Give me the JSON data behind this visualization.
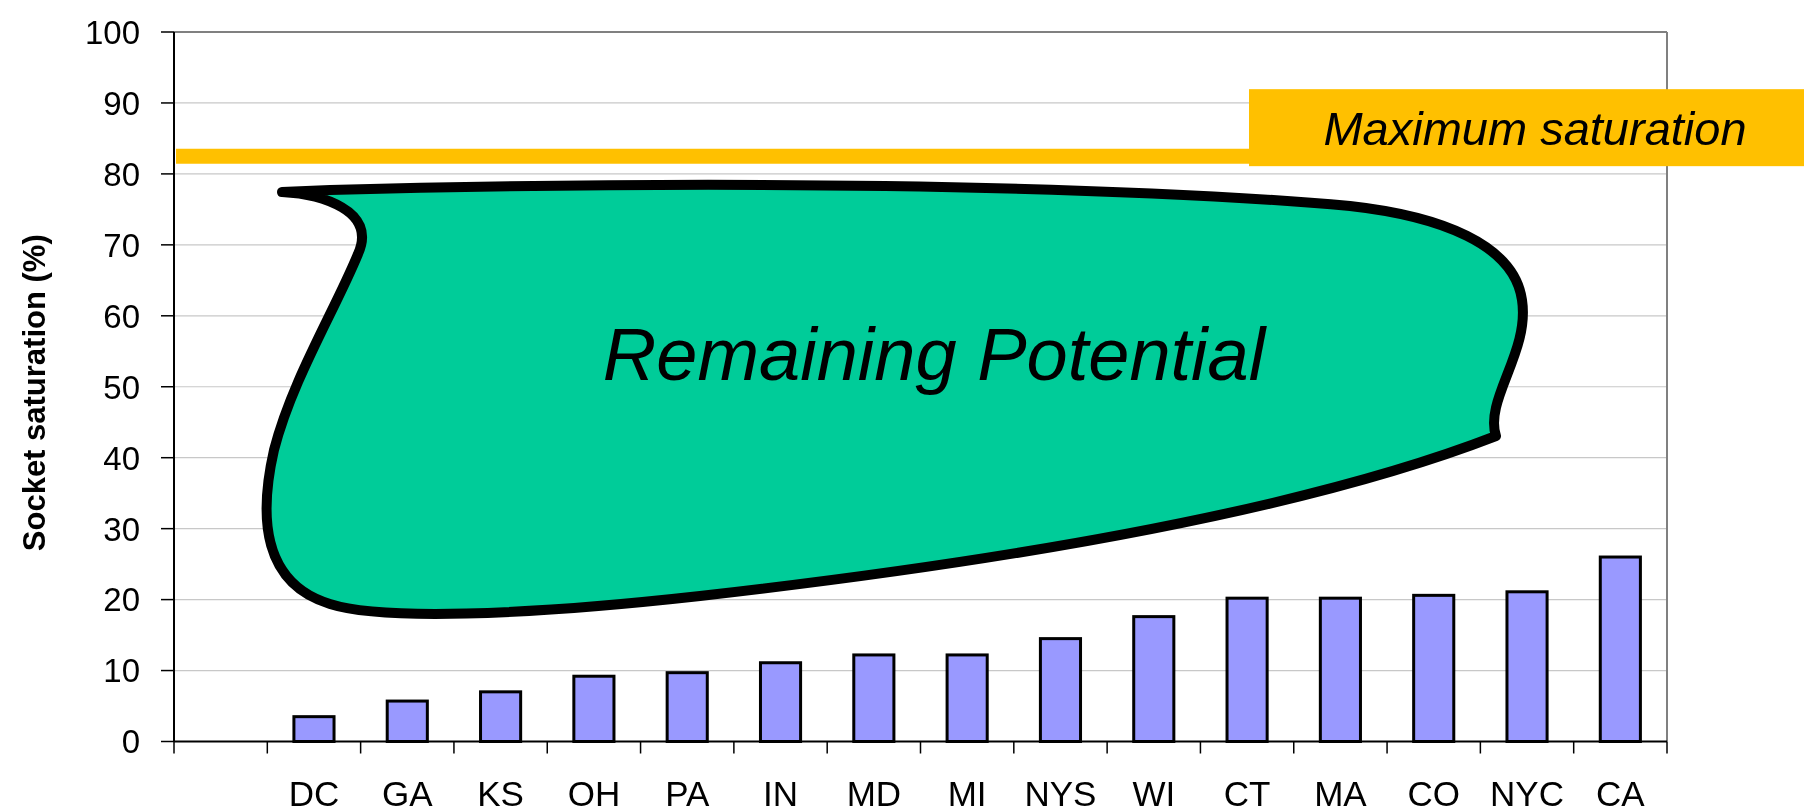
{
  "chart_data": {
    "type": "bar",
    "ylabel": "Socket saturation (%)",
    "categories": [
      null,
      "DC",
      "GA",
      "KS",
      "OH",
      "PA",
      "IN",
      "MD",
      "MI",
      "NYS",
      "WI",
      "CT",
      "MA",
      "CO",
      "NYC",
      "CA"
    ],
    "values": [
      null,
      3.5,
      5.7,
      7.0,
      9.2,
      9.7,
      11.1,
      12.2,
      12.2,
      14.5,
      17.6,
      20.2,
      20.2,
      20.6,
      21.1,
      26.0
    ],
    "color": "#9999ff",
    "ylim": [
      0,
      100
    ],
    "yticks": [
      0,
      10,
      20,
      30,
      40,
      50,
      60,
      70,
      80,
      90,
      100
    ],
    "grid": "y",
    "ref_lines": [
      {
        "axis": "y",
        "value": 82.5,
        "label": "Maximum saturation",
        "color": "#ffc000"
      }
    ],
    "annotations": [
      "Remaining Potential"
    ]
  }
}
